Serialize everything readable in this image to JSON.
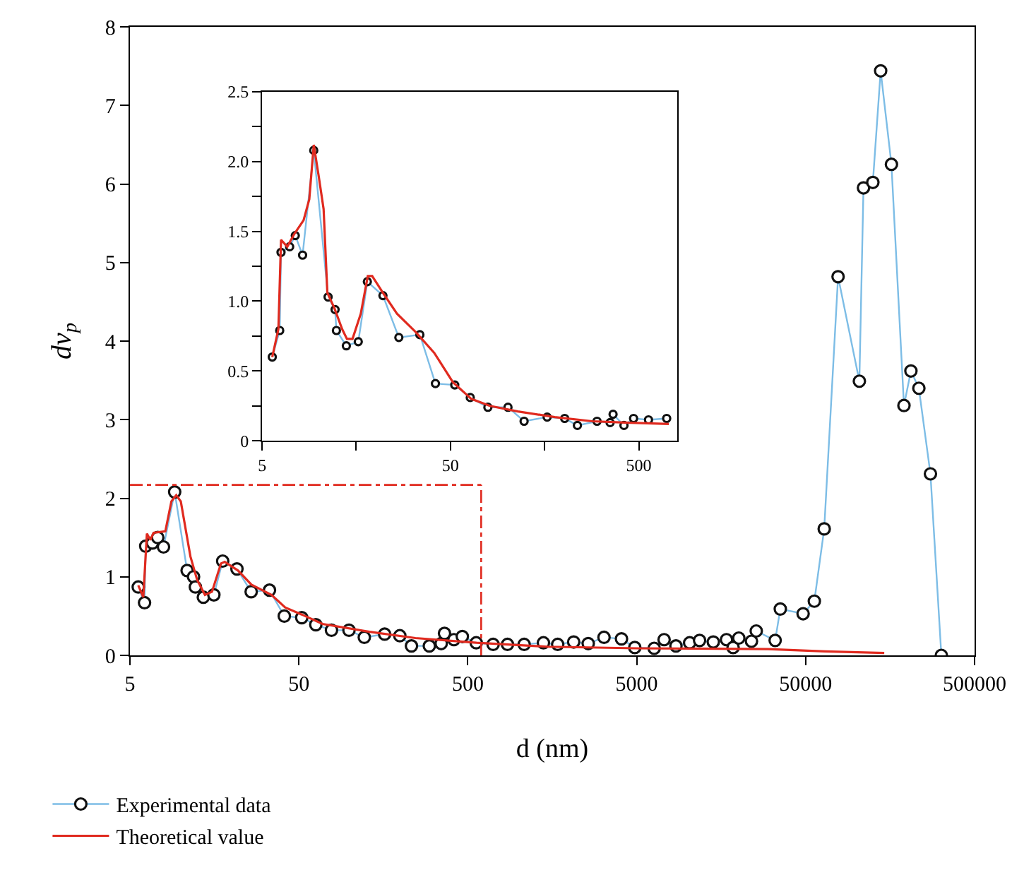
{
  "chart_data": [
    {
      "type": "line",
      "xlabel": "d (nm)",
      "ylabel": "dv$_{p}$",
      "log": "x",
      "xlim": [
        5,
        500000
      ],
      "xticks": [
        5,
        50,
        500,
        5000,
        50000,
        500000
      ],
      "ylim": [
        0,
        8
      ],
      "yticks": [
        0,
        1,
        2,
        3,
        4,
        5,
        6,
        7,
        8
      ],
      "legend": "bottom left",
      "ref_lines": [
        {
          "axis": "x",
          "value": 600,
          "color": "#e02a1f",
          "line_style": "dashdot"
        },
        {
          "axis": "y",
          "value": 2.17,
          "color": "#e02a1f",
          "line_style": "dashdot"
        }
      ],
      "series": [
        {
          "name": "Experimental data",
          "color": "#7dbde6",
          "marker": "circle",
          "x": [
            5.6,
            6.1,
            6.2,
            6.8,
            7.3,
            7.9,
            9.2,
            10.9,
            11.9,
            12.2,
            13.6,
            15.7,
            17.7,
            21.5,
            26.1,
            33.5,
            41,
            52,
            63,
            78,
            99,
            122,
            161,
            198,
            232,
            296,
            348,
            364,
            414,
            464,
            561,
            706,
            859,
            1078,
            1402,
            1703,
            2118,
            2582,
            3201,
            4063,
            4870,
            6344,
            7262,
            8534,
            10290,
            11780,
            14200,
            17000,
            18600,
            20100,
            23900,
            25500,
            33000,
            35400,
            48300,
            56300,
            64400,
            77800,
            104000,
            110000,
            125000,
            139000,
            161000,
            191000,
            210000,
            234000,
            274000,
            318000
          ],
          "values": [
            0.87,
            0.67,
            1.39,
            1.43,
            1.5,
            1.38,
            2.08,
            1.08,
            1.0,
            0.87,
            0.74,
            0.77,
            1.2,
            1.1,
            0.81,
            0.83,
            0.5,
            0.48,
            0.39,
            0.32,
            0.32,
            0.23,
            0.27,
            0.25,
            0.12,
            0.12,
            0.15,
            0.28,
            0.2,
            0.24,
            0.16,
            0.14,
            0.14,
            0.14,
            0.16,
            0.14,
            0.17,
            0.15,
            0.23,
            0.21,
            0.1,
            0.09,
            0.2,
            0.12,
            0.16,
            0.19,
            0.17,
            0.2,
            0.1,
            0.22,
            0.18,
            0.31,
            0.19,
            0.59,
            0.53,
            0.69,
            1.61,
            4.82,
            3.49,
            5.95,
            6.02,
            7.44,
            6.25,
            3.18,
            3.62,
            3.4,
            2.31,
            0.0
          ]
        },
        {
          "name": "Theoretical value",
          "color": "#e02a1f",
          "marker": "none",
          "x": [
            5.6,
            6.0,
            6.3,
            6.6,
            6.9,
            8.1,
            8.8,
            9.4,
            10.0,
            11.4,
            12.5,
            13.9,
            15.3,
            17.3,
            18.2,
            21.8,
            26.2,
            34.4,
            41.5,
            52,
            69,
            131,
            245,
            563,
            1500,
            5000,
            30000,
            65000,
            146000
          ],
          "values": [
            0.89,
            0.74,
            1.55,
            1.47,
            1.56,
            1.58,
            1.96,
            2.04,
            1.96,
            1.26,
            0.96,
            0.77,
            0.81,
            1.17,
            1.19,
            1.08,
            0.9,
            0.77,
            0.61,
            0.52,
            0.4,
            0.3,
            0.22,
            0.16,
            0.11,
            0.09,
            0.08,
            0.05,
            0.03
          ]
        }
      ]
    },
    {
      "type": "line",
      "log": "x",
      "xlim": [
        5,
        800
      ],
      "xticks": [
        5,
        {
          "value": 15.8,
          "label": null
        },
        50,
        {
          "value": 158,
          "label": null
        },
        500
      ],
      "ylim": [
        0,
        2.5
      ],
      "yticks": [
        0,
        {
          "value": 0.25,
          "label": null
        },
        0.5,
        {
          "value": 0.75,
          "label": null
        },
        {
          "value": 1,
          "label": "1.0"
        },
        {
          "value": 1.25,
          "label": null
        },
        1.5,
        {
          "value": 1.75,
          "label": null
        },
        {
          "value": 2,
          "label": "2.0"
        },
        {
          "value": 2.25,
          "label": null
        },
        2.5
      ],
      "series": [
        {
          "color": "#7dbde6",
          "marker": "circle",
          "x": [
            5.66,
            6.2,
            6.3,
            7.0,
            7.5,
            8.2,
            9.4,
            11.2,
            12.2,
            12.4,
            14.0,
            16.2,
            18.1,
            21.9,
            26.6,
            34.4,
            41.6,
            52.7,
            63.7,
            79,
            101,
            123,
            163,
            202,
            236,
            300,
            352,
            365,
            417,
            469,
            563,
            703
          ],
          "values": [
            0.6,
            0.79,
            1.35,
            1.39,
            1.47,
            1.33,
            2.08,
            1.03,
            0.94,
            0.79,
            0.68,
            0.71,
            1.14,
            1.04,
            0.74,
            0.76,
            0.41,
            0.4,
            0.31,
            0.24,
            0.24,
            0.14,
            0.17,
            0.16,
            0.11,
            0.14,
            0.13,
            0.19,
            0.11,
            0.16,
            0.15,
            0.16
          ]
        },
        {
          "color": "#e02a1f",
          "marker": "none",
          "x": [
            5.66,
            6.1,
            6.3,
            6.8,
            7.4,
            8.3,
            8.9,
            9.4,
            10.0,
            10.6,
            11.1,
            12.1,
            13.3,
            14.1,
            15.1,
            16.7,
            18.2,
            19.2,
            21.9,
            26,
            32.6,
            41,
            51.5,
            64.5,
            81,
            114,
            179,
            283,
            422,
            722
          ],
          "values": [
            0.6,
            0.8,
            1.44,
            1.39,
            1.48,
            1.58,
            1.73,
            2.12,
            1.89,
            1.66,
            1.06,
            0.95,
            0.8,
            0.73,
            0.73,
            0.91,
            1.18,
            1.18,
            1.06,
            0.91,
            0.78,
            0.63,
            0.42,
            0.3,
            0.25,
            0.21,
            0.17,
            0.14,
            0.13,
            0.12
          ]
        }
      ]
    }
  ]
}
